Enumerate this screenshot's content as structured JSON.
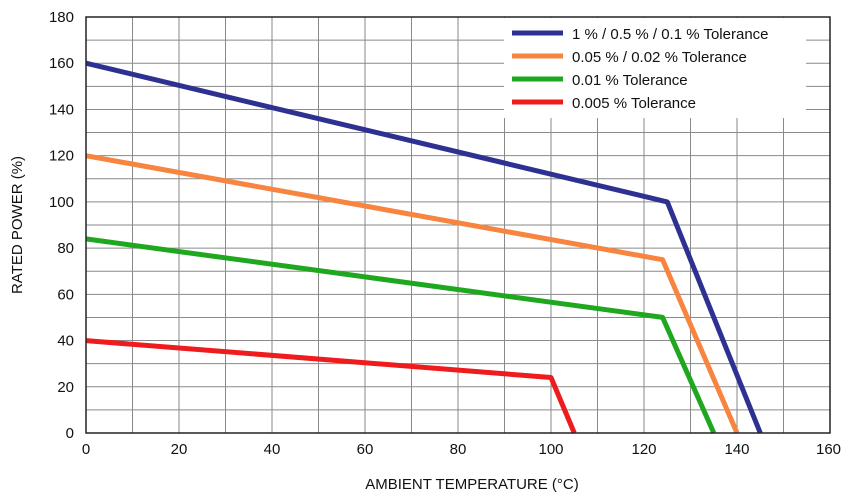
{
  "chart_data": {
    "type": "line",
    "title": "",
    "xlabel": "AMBIENT TEMPERATURE (°C)",
    "ylabel": "RATED POWER (%)",
    "xlim": [
      0,
      160
    ],
    "ylim": [
      0,
      180
    ],
    "x_ticks": [
      0,
      20,
      40,
      60,
      80,
      100,
      120,
      140,
      160
    ],
    "y_ticks": [
      0,
      20,
      40,
      60,
      80,
      100,
      120,
      140,
      160,
      180
    ],
    "grid": true,
    "legend_position": "top-right",
    "series": [
      {
        "name": "1 % / 0.5 % / 0.1 % Tolerance",
        "color": "#2e3192",
        "points": [
          [
            0,
            160
          ],
          [
            125,
            100
          ],
          [
            145,
            0
          ]
        ]
      },
      {
        "name": "0.05 % / 0.02 % Tolerance",
        "color": "#f7843f",
        "points": [
          [
            0,
            120
          ],
          [
            124,
            75
          ],
          [
            140,
            0
          ]
        ]
      },
      {
        "name": "0.01 % Tolerance",
        "color": "#1fa81f",
        "points": [
          [
            0,
            84
          ],
          [
            124,
            50
          ],
          [
            135,
            0
          ]
        ]
      },
      {
        "name": "0.005 % Tolerance",
        "color": "#ee1c1c",
        "points": [
          [
            0,
            40
          ],
          [
            100,
            24
          ],
          [
            105,
            0
          ]
        ]
      }
    ]
  }
}
